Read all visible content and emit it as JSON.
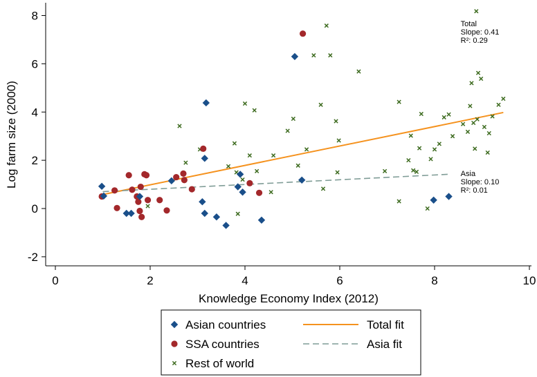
{
  "chart_data": {
    "type": "scatter",
    "xlabel": "Knowledge Economy Index (2012)",
    "ylabel": "Log farm size (2000)",
    "xlim": [
      0,
      10
    ],
    "ylim": [
      -2.5,
      8.5
    ],
    "x_ticks": [
      0,
      2,
      4,
      6,
      8,
      10
    ],
    "y_ticks": [
      -2,
      0,
      2,
      4,
      6,
      8
    ],
    "grid": false,
    "legend_position": "bottom",
    "series": [
      {
        "name": "Asian countries",
        "marker": "diamond",
        "color": "#1a4f8a",
        "points": [
          [
            0.98,
            0.92
          ],
          [
            1.02,
            0.52
          ],
          [
            1.5,
            -0.2
          ],
          [
            1.6,
            -0.2
          ],
          [
            1.78,
            0.5
          ],
          [
            2.45,
            1.15
          ],
          [
            3.1,
            0.28
          ],
          [
            3.15,
            -0.2
          ],
          [
            3.15,
            2.08
          ],
          [
            3.18,
            4.38
          ],
          [
            3.4,
            -0.35
          ],
          [
            3.6,
            -0.7
          ],
          [
            3.85,
            0.9
          ],
          [
            3.9,
            1.42
          ],
          [
            3.95,
            0.68
          ],
          [
            4.35,
            -0.48
          ],
          [
            5.05,
            6.3
          ],
          [
            5.2,
            1.18
          ],
          [
            7.98,
            0.35
          ],
          [
            8.3,
            0.5
          ]
        ]
      },
      {
        "name": "SSA countries",
        "marker": "circle",
        "color": "#a3282b",
        "points": [
          [
            0.98,
            0.5
          ],
          [
            1.25,
            0.75
          ],
          [
            1.3,
            0.02
          ],
          [
            1.55,
            1.38
          ],
          [
            1.62,
            0.78
          ],
          [
            1.72,
            0.5
          ],
          [
            1.75,
            0.28
          ],
          [
            1.78,
            -0.1
          ],
          [
            1.8,
            0.9
          ],
          [
            1.82,
            -0.35
          ],
          [
            1.88,
            1.42
          ],
          [
            1.92,
            1.38
          ],
          [
            1.95,
            0.35
          ],
          [
            2.2,
            0.35
          ],
          [
            2.35,
            -0.08
          ],
          [
            2.55,
            1.3
          ],
          [
            2.7,
            1.45
          ],
          [
            2.72,
            1.18
          ],
          [
            2.88,
            0.8
          ],
          [
            3.12,
            2.48
          ],
          [
            4.1,
            1.05
          ],
          [
            4.3,
            0.65
          ],
          [
            5.22,
            7.25
          ]
        ]
      },
      {
        "name": "Rest of world",
        "marker": "x",
        "color": "#3d6b1f",
        "points": [
          [
            1.95,
            0.1
          ],
          [
            2.62,
            3.42
          ],
          [
            2.75,
            1.9
          ],
          [
            3.05,
            2.45
          ],
          [
            3.65,
            1.75
          ],
          [
            3.78,
            2.7
          ],
          [
            3.82,
            1.5
          ],
          [
            3.85,
            -0.22
          ],
          [
            3.95,
            1.2
          ],
          [
            4.0,
            4.35
          ],
          [
            4.1,
            2.2
          ],
          [
            4.2,
            4.07
          ],
          [
            4.25,
            1.55
          ],
          [
            4.55,
            0.68
          ],
          [
            4.6,
            2.2
          ],
          [
            4.9,
            3.22
          ],
          [
            5.02,
            3.72
          ],
          [
            5.12,
            1.78
          ],
          [
            5.3,
            2.45
          ],
          [
            5.45,
            6.35
          ],
          [
            5.6,
            4.3
          ],
          [
            5.65,
            0.82
          ],
          [
            5.72,
            7.58
          ],
          [
            5.8,
            6.35
          ],
          [
            5.92,
            3.62
          ],
          [
            5.95,
            1.5
          ],
          [
            5.98,
            2.82
          ],
          [
            6.4,
            5.68
          ],
          [
            6.95,
            1.55
          ],
          [
            7.25,
            0.3
          ],
          [
            7.25,
            4.42
          ],
          [
            7.45,
            2.0
          ],
          [
            7.5,
            3.02
          ],
          [
            7.55,
            1.58
          ],
          [
            7.62,
            1.52
          ],
          [
            7.68,
            2.5
          ],
          [
            7.72,
            3.92
          ],
          [
            7.85,
            0.0
          ],
          [
            7.92,
            2.05
          ],
          [
            8.0,
            2.45
          ],
          [
            8.1,
            2.68
          ],
          [
            8.2,
            3.78
          ],
          [
            8.3,
            3.9
          ],
          [
            8.38,
            3.0
          ],
          [
            8.6,
            3.5
          ],
          [
            8.7,
            3.18
          ],
          [
            8.75,
            4.25
          ],
          [
            8.78,
            5.2
          ],
          [
            8.82,
            3.55
          ],
          [
            8.85,
            2.48
          ],
          [
            8.88,
            8.18
          ],
          [
            8.9,
            3.7
          ],
          [
            8.92,
            5.62
          ],
          [
            8.98,
            5.38
          ],
          [
            9.05,
            3.38
          ],
          [
            9.12,
            2.32
          ],
          [
            9.15,
            3.12
          ],
          [
            9.22,
            3.82
          ],
          [
            9.35,
            4.3
          ],
          [
            9.45,
            4.55
          ]
        ]
      }
    ],
    "fits": [
      {
        "name": "Total fit",
        "style": "solid",
        "color": "#f5921e",
        "x": [
          1.0,
          9.45
        ],
        "y": [
          0.58,
          3.98
        ]
      },
      {
        "name": "Asia fit",
        "style": "dashed",
        "color": "#7f9c96",
        "x": [
          1.0,
          8.3
        ],
        "y": [
          0.7,
          1.42
        ]
      }
    ],
    "annotations": [
      {
        "id": "total",
        "lines": [
          "Total",
          "Slope: 0.41",
          "R²: 0.29"
        ],
        "x": 8.55,
        "y": 7.55
      },
      {
        "id": "asia",
        "lines": [
          "Asia",
          "Slope: 0.10",
          "R²: 0.01"
        ],
        "x": 8.55,
        "y": 1.35
      }
    ],
    "legend": [
      "Asian countries",
      "Total fit",
      "SSA countries",
      "Asia fit",
      "Rest of world"
    ]
  }
}
